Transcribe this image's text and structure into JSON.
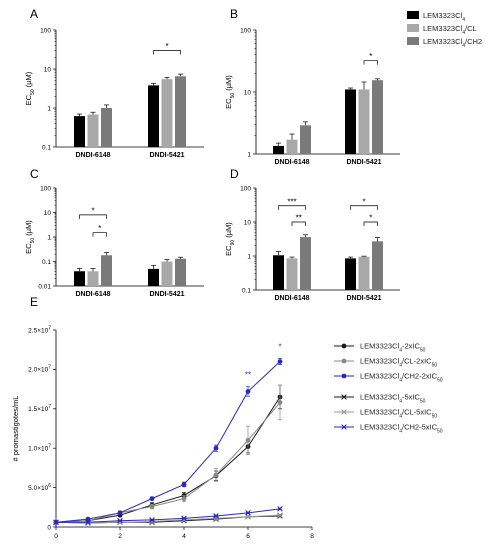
{
  "chart_data": [
    {
      "type": "bar",
      "panel": "A",
      "ylabel_main": "EC",
      "ylabel_sub": "50",
      "ylabel_unit": " (µM)",
      "yscale": "log",
      "ylim": [
        0.1,
        100
      ],
      "yticks": [
        "0.1",
        "1",
        "10",
        "100"
      ],
      "categories": [
        "DNDI-6148",
        "DNDI-5421"
      ],
      "series": [
        {
          "values": [
            0.62,
            3.8
          ],
          "errors": [
            0.08,
            0.5
          ]
        },
        {
          "values": [
            0.68,
            5.5
          ],
          "errors": [
            0.1,
            0.6
          ]
        },
        {
          "values": [
            1.0,
            6.5
          ],
          "errors": [
            0.2,
            0.9
          ]
        }
      ],
      "significance": [
        {
          "group": 1,
          "from": 0,
          "to": 2,
          "level": 30,
          "label": "*"
        }
      ]
    },
    {
      "type": "bar",
      "panel": "B",
      "ylabel_main": "EC",
      "ylabel_sub": "50",
      "ylabel_unit": " (µM)",
      "yscale": "log",
      "ylim": [
        1,
        100
      ],
      "yticks": [
        "1",
        "10",
        "100"
      ],
      "categories": [
        "DNDI-6148",
        "DNDI-5421"
      ],
      "series": [
        {
          "values": [
            1.35,
            11.0
          ],
          "errors": [
            0.15,
            0.6
          ]
        },
        {
          "values": [
            1.7,
            11.0
          ],
          "errors": [
            0.4,
            3.5
          ]
        },
        {
          "values": [
            2.9,
            15.5
          ],
          "errors": [
            0.4,
            0.8
          ]
        }
      ],
      "significance": [
        {
          "group": 1,
          "from": 1,
          "to": 2,
          "level": 32,
          "label": "*"
        }
      ]
    },
    {
      "type": "bar",
      "panel": "C",
      "ylabel_main": "EC",
      "ylabel_sub": "50",
      "ylabel_unit": " (µM)",
      "yscale": "log",
      "ylim": [
        0.01,
        100
      ],
      "yticks": [
        "0.01",
        "0.1",
        "1",
        "10",
        "100"
      ],
      "categories": [
        "DNDI-6148",
        "DNDI-5421"
      ],
      "series": [
        {
          "values": [
            0.04,
            0.05
          ],
          "errors": [
            0.012,
            0.02
          ]
        },
        {
          "values": [
            0.04,
            0.1
          ],
          "errors": [
            0.012,
            0.02
          ]
        },
        {
          "values": [
            0.18,
            0.13
          ],
          "errors": [
            0.05,
            0.02
          ]
        }
      ],
      "significance": [
        {
          "group": 0,
          "from": 0,
          "to": 2,
          "level": 8,
          "label": "*"
        },
        {
          "group": 0,
          "from": 1,
          "to": 2,
          "level": 1.5,
          "label": "*"
        }
      ]
    },
    {
      "type": "bar",
      "panel": "D",
      "ylabel_main": "EC",
      "ylabel_sub": "90",
      "ylabel_unit": " (µM)",
      "yscale": "log",
      "ylim": [
        0.1,
        100
      ],
      "yticks": [
        "0.1",
        "1",
        "10",
        "100"
      ],
      "categories": [
        "DNDI-6148",
        "DNDI-5421"
      ],
      "series": [
        {
          "values": [
            1.05,
            0.85
          ],
          "errors": [
            0.3,
            0.08
          ]
        },
        {
          "values": [
            0.85,
            0.95
          ],
          "errors": [
            0.08,
            0.04
          ]
        },
        {
          "values": [
            3.6,
            2.7
          ],
          "errors": [
            0.6,
            0.8
          ]
        }
      ],
      "significance": [
        {
          "group": 0,
          "from": 0,
          "to": 2,
          "level": 30,
          "label": "***"
        },
        {
          "group": 0,
          "from": 1,
          "to": 2,
          "level": 10,
          "label": "**"
        },
        {
          "group": 1,
          "from": 0,
          "to": 2,
          "level": 30,
          "label": "*"
        },
        {
          "group": 1,
          "from": 1,
          "to": 2,
          "level": 10,
          "label": "*"
        }
      ]
    },
    {
      "type": "line",
      "panel": "E",
      "ylabel": "# promastigotes/mL",
      "xlim": [
        0,
        8
      ],
      "ylim": [
        0,
        25000000
      ],
      "xticks": [
        "0",
        "2",
        "4",
        "6",
        "8"
      ],
      "ytick_labels": [
        {
          "value": 0,
          "label": "0"
        },
        {
          "value": 5000000,
          "label": "5.0×10",
          "exp": "6"
        },
        {
          "value": 10000000,
          "label": "1.0×10",
          "exp": "7"
        },
        {
          "value": 15000000,
          "label": "1.5×10",
          "exp": "7"
        },
        {
          "value": 20000000,
          "label": "2.0×10",
          "exp": "7"
        },
        {
          "value": 25000000,
          "label": "2.5×10",
          "exp": "7"
        }
      ],
      "x": [
        0,
        1,
        2,
        3,
        4,
        5,
        6,
        7
      ],
      "series": [
        {
          "legend_index": 0,
          "values": [
            600000,
            800000,
            1500000,
            2800000,
            4000000,
            6500000,
            10200000,
            16500000
          ],
          "errors": [
            100000,
            100000,
            200000,
            300000,
            400000,
            600000,
            800000,
            1500000
          ]
        },
        {
          "legend_index": 1,
          "values": [
            600000,
            800000,
            1800000,
            2600000,
            3600000,
            6600000,
            11000000,
            15800000
          ],
          "errors": [
            100000,
            100000,
            200000,
            300000,
            400000,
            800000,
            1800000,
            2200000
          ]
        },
        {
          "legend_index": 2,
          "values": [
            600000,
            1000000,
            1800000,
            3600000,
            5400000,
            10000000,
            17200000,
            21000000
          ],
          "errors": [
            100000,
            100000,
            200000,
            200000,
            300000,
            400000,
            600000,
            400000
          ]
        },
        {
          "legend_index": 3,
          "values": [
            600000,
            500000,
            600000,
            600000,
            800000,
            1000000,
            1300000,
            1400000
          ],
          "errors": [
            50000,
            50000,
            50000,
            50000,
            50000,
            100000,
            100000,
            100000
          ]
        },
        {
          "legend_index": 4,
          "values": [
            600000,
            500000,
            600000,
            700000,
            900000,
            1100000,
            1300000,
            1500000
          ],
          "errors": [
            50000,
            50000,
            50000,
            50000,
            50000,
            100000,
            100000,
            100000
          ]
        },
        {
          "legend_index": 5,
          "values": [
            600000,
            600000,
            800000,
            900000,
            1100000,
            1400000,
            1800000,
            2300000
          ],
          "errors": [
            50000,
            50000,
            50000,
            50000,
            50000,
            100000,
            100000,
            100000
          ]
        }
      ],
      "annotations": [
        {
          "x": 6,
          "y": 19000000,
          "text": "**",
          "color": "#2a2ab8"
        },
        {
          "x": 7,
          "y": 22500000,
          "text": "*",
          "color": "#2a2ab8"
        }
      ]
    }
  ],
  "bar_legend": [
    {
      "main": "LEM3323Cl",
      "sub": "4",
      "tail": "",
      "color": "#000000"
    },
    {
      "main": "LEM3323Cl",
      "sub": "4",
      "tail": "/CL",
      "color": "#a8a8a8"
    },
    {
      "main": "LEM3323Cl",
      "sub": "4",
      "tail": "/CH2",
      "color": "#7a7a7a"
    }
  ],
  "line_legend": [
    {
      "main": "LEM3323Cl",
      "sub": "4",
      "mid": "-2xIC",
      "sub2": "50",
      "color": "#1a1a1a",
      "marker": "circle"
    },
    {
      "main": "LEM3323Cl",
      "sub": "4",
      "mid": "/CL-2xIC",
      "sub2": "50",
      "color": "#888888",
      "marker": "circle"
    },
    {
      "main": "LEM3323Cl",
      "sub": "4",
      "mid": "/CH2-2xIC",
      "sub2": "50",
      "color": "#2a2ab8",
      "marker": "circle"
    },
    {
      "main": "LEM3323Cl",
      "sub": "4",
      "mid": "-5xIC",
      "sub2": "50",
      "color": "#1a1a1a",
      "marker": "x"
    },
    {
      "main": "LEM3323Cl",
      "sub": "4",
      "mid": "/CL-5xIC",
      "sub2": "50",
      "color": "#999999",
      "marker": "x"
    },
    {
      "main": "LEM3323Cl",
      "sub": "4",
      "mid": "/CH2-5xIC",
      "sub2": "50",
      "color": "#2a2ab8",
      "marker": "x"
    }
  ],
  "colors": {
    "axis": "#000000",
    "bar_error": "#000000"
  }
}
